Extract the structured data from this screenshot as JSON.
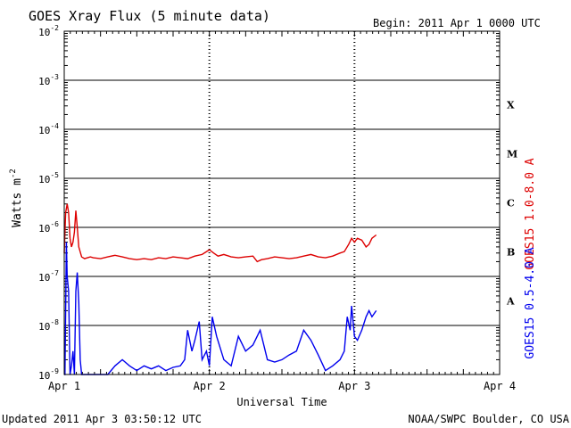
{
  "header": {
    "title": "GOES Xray Flux (5 minute data)",
    "begin": "Begin:  2011 Apr 1 0000 UTC"
  },
  "footer": {
    "updated": "Updated 2011 Apr  3 03:50:12 UTC",
    "credit": "NOAA/SWPC Boulder, CO USA"
  },
  "chart_data": {
    "type": "line",
    "title": "GOES Xray Flux (5 minute data)",
    "xlabel": "Universal Time",
    "ylabel": "Watts m",
    "ylabel_exp": "-2",
    "yscale": "log",
    "ylim": [
      1e-09,
      0.01
    ],
    "xlim": [
      0,
      3
    ],
    "x_unit": "days since 2011 Apr 1 0000 UTC",
    "x_ticks": [
      {
        "value": 0,
        "label": "Apr 1"
      },
      {
        "value": 1,
        "label": "Apr 2"
      },
      {
        "value": 2,
        "label": "Apr 3"
      },
      {
        "value": 3,
        "label": "Apr 4"
      }
    ],
    "y_ticks": [
      {
        "exp": -2,
        "label": "-2"
      },
      {
        "exp": -3,
        "label": "-3"
      },
      {
        "exp": -4,
        "label": "-4"
      },
      {
        "exp": -5,
        "label": "-5"
      },
      {
        "exp": -6,
        "label": "-6"
      },
      {
        "exp": -7,
        "label": "-7"
      },
      {
        "exp": -8,
        "label": "-8"
      },
      {
        "exp": -9,
        "label": "-9"
      }
    ],
    "flare_classes": [
      {
        "label": "X",
        "exp": -3.5
      },
      {
        "label": "M",
        "exp": -4.5
      },
      {
        "label": "C",
        "exp": -5.5
      },
      {
        "label": "B",
        "exp": -6.5
      },
      {
        "label": "A",
        "exp": -7.5
      }
    ],
    "grid": true,
    "series": [
      {
        "name": "GOES15 1.0-8.0 A",
        "color": "#dd0000",
        "x": [
          0.0,
          0.01,
          0.02,
          0.03,
          0.04,
          0.05,
          0.06,
          0.07,
          0.08,
          0.09,
          0.1,
          0.12,
          0.14,
          0.16,
          0.18,
          0.2,
          0.25,
          0.3,
          0.35,
          0.4,
          0.45,
          0.5,
          0.55,
          0.6,
          0.65,
          0.7,
          0.75,
          0.8,
          0.85,
          0.9,
          0.95,
          1.0,
          1.03,
          1.06,
          1.1,
          1.15,
          1.2,
          1.25,
          1.3,
          1.33,
          1.36,
          1.4,
          1.45,
          1.5,
          1.55,
          1.6,
          1.65,
          1.7,
          1.75,
          1.8,
          1.85,
          1.9,
          1.93,
          1.96,
          1.98,
          2.0,
          2.02,
          2.05,
          2.08,
          2.1,
          2.12,
          2.15
        ],
        "values": [
          3e-07,
          2e-06,
          3e-06,
          2e-06,
          6e-07,
          4e-07,
          5e-07,
          8e-07,
          2.2e-06,
          1e-06,
          4e-07,
          2.5e-07,
          2.3e-07,
          2.4e-07,
          2.5e-07,
          2.4e-07,
          2.3e-07,
          2.5e-07,
          2.7e-07,
          2.5e-07,
          2.3e-07,
          2.2e-07,
          2.3e-07,
          2.2e-07,
          2.4e-07,
          2.3e-07,
          2.5e-07,
          2.4e-07,
          2.3e-07,
          2.6e-07,
          2.8e-07,
          3.5e-07,
          3e-07,
          2.6e-07,
          2.8e-07,
          2.5e-07,
          2.4e-07,
          2.5e-07,
          2.6e-07,
          2e-07,
          2.2e-07,
          2.3e-07,
          2.5e-07,
          2.4e-07,
          2.3e-07,
          2.4e-07,
          2.6e-07,
          2.8e-07,
          2.5e-07,
          2.4e-07,
          2.6e-07,
          3e-07,
          3.2e-07,
          4.5e-07,
          6e-07,
          5e-07,
          6e-07,
          5.5e-07,
          4e-07,
          4.5e-07,
          6e-07,
          7e-07
        ]
      },
      {
        "name": "GOES15 0.5-4.0 A",
        "color": "#0000ee",
        "x": [
          0.0,
          0.005,
          0.01,
          0.015,
          0.02,
          0.03,
          0.04,
          0.05,
          0.06,
          0.07,
          0.08,
          0.09,
          0.1,
          0.11,
          0.12,
          0.14,
          0.16,
          0.18,
          0.2,
          0.25,
          0.3,
          0.35,
          0.4,
          0.45,
          0.5,
          0.55,
          0.6,
          0.65,
          0.7,
          0.75,
          0.8,
          0.83,
          0.85,
          0.88,
          0.9,
          0.93,
          0.95,
          0.98,
          1.0,
          1.02,
          1.05,
          1.1,
          1.15,
          1.2,
          1.25,
          1.3,
          1.35,
          1.4,
          1.45,
          1.5,
          1.55,
          1.6,
          1.65,
          1.7,
          1.75,
          1.8,
          1.85,
          1.9,
          1.93,
          1.95,
          1.97,
          1.98,
          2.0,
          2.02,
          2.05,
          2.08,
          2.1,
          2.12,
          2.15
        ],
        "values": [
          1e-09,
          1e-09,
          2e-08,
          5e-07,
          1e-07,
          5e-08,
          1e-09,
          1.5e-09,
          3e-09,
          1e-09,
          5e-08,
          1.2e-07,
          3e-08,
          2e-09,
          1e-09,
          1e-09,
          1e-09,
          1e-09,
          1e-09,
          1e-09,
          1e-09,
          1.5e-09,
          2e-09,
          1.5e-09,
          1.2e-09,
          1.5e-09,
          1.3e-09,
          1.5e-09,
          1.2e-09,
          1.4e-09,
          1.5e-09,
          2e-09,
          8e-09,
          3e-09,
          5e-09,
          1.2e-08,
          2e-09,
          3e-09,
          1.5e-09,
          1.5e-08,
          6e-09,
          2e-09,
          1.5e-09,
          6e-09,
          3e-09,
          4e-09,
          8e-09,
          2e-09,
          1.8e-09,
          2e-09,
          2.5e-09,
          3e-09,
          8e-09,
          5e-09,
          2.5e-09,
          1.2e-09,
          1.5e-09,
          2e-09,
          3e-09,
          1.5e-08,
          8e-09,
          2.5e-08,
          6e-09,
          5e-09,
          8e-09,
          1.5e-08,
          2e-08,
          1.5e-08,
          2e-08
        ]
      }
    ]
  }
}
